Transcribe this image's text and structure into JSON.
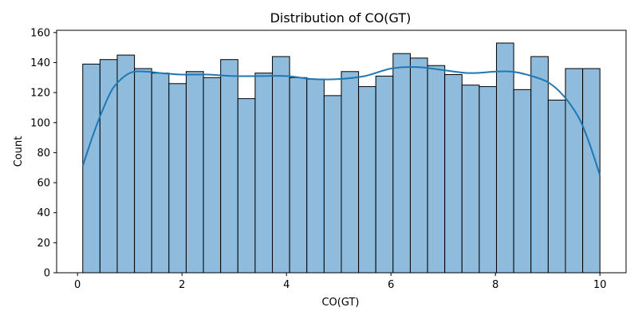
{
  "chart_data": {
    "type": "bar",
    "title": "Distribution of CO(GT)",
    "xlabel": "CO(GT)",
    "ylabel": "Count",
    "xlim": [
      -0.4,
      10.5
    ],
    "ylim": [
      0,
      161.5
    ],
    "xticks": [
      0,
      2,
      4,
      6,
      8,
      10
    ],
    "yticks": [
      0,
      20,
      40,
      60,
      80,
      100,
      120,
      140,
      160
    ],
    "grid": false,
    "bin_start": 0.1,
    "bin_end": 10.0,
    "values": [
      139,
      142,
      145,
      136,
      133,
      126,
      134,
      130,
      142,
      116,
      133,
      144,
      130,
      129,
      118,
      134,
      124,
      131,
      146,
      143,
      138,
      132,
      125,
      124,
      153,
      122,
      144,
      115,
      136,
      136
    ],
    "kde": {
      "x": [
        0.1,
        0.3,
        0.5,
        0.7,
        1.0,
        1.3,
        1.6,
        2.0,
        2.5,
        3.0,
        3.5,
        4.0,
        4.5,
        5.0,
        5.5,
        6.0,
        6.5,
        7.0,
        7.5,
        8.0,
        8.3,
        8.6,
        9.0,
        9.3,
        9.6,
        9.8,
        10.0
      ],
      "y": [
        71,
        92,
        110,
        124,
        133,
        134,
        133,
        132,
        132,
        131,
        131,
        131,
        129,
        129,
        131,
        136,
        137,
        135,
        133,
        134,
        134,
        132,
        127,
        118,
        103,
        86,
        65
      ]
    },
    "bar_color": "#8fbcdc",
    "edge_color": "#000000",
    "kde_color": "#1f77b4"
  }
}
